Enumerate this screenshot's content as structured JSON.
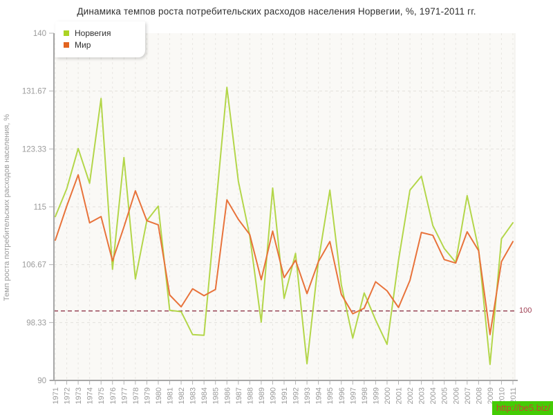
{
  "title": "Динамика темпов роста потребительских расходов населения Норвегии, %, 1971-2011 гг.",
  "watermark": "http://be5.biz/",
  "guide": {
    "value": 100,
    "label": "100",
    "color": "#8e3449"
  },
  "legend": [
    {
      "label": "Норвегия",
      "color": "#abd324"
    },
    {
      "label": "Мир",
      "color": "#e2641f"
    }
  ],
  "y_axis": {
    "title": "Темп роста потребительских расходов населения, %",
    "tick_labels": [
      "90",
      "98.33",
      "106.67",
      "115",
      "123.33",
      "131.67",
      "140"
    ],
    "tick_values": [
      90,
      98.33,
      106.67,
      115,
      123.33,
      131.67,
      140
    ]
  },
  "chart_data": {
    "type": "line",
    "title": "Динамика темпов роста потребительских расходов населения Норвегии, %, 1971-2011 гг.",
    "xlabel": "",
    "ylabel": "Темп роста потребительских расходов населения, %",
    "ylim": [
      90,
      140
    ],
    "grid": true,
    "legend_position": "top-left",
    "guide_line": {
      "value": 100,
      "style": "dashed",
      "color": "#8e3449"
    },
    "x": [
      1971,
      1972,
      1973,
      1974,
      1975,
      1976,
      1977,
      1978,
      1979,
      1980,
      1981,
      1982,
      1983,
      1984,
      1985,
      1986,
      1987,
      1988,
      1989,
      1990,
      1991,
      1992,
      1993,
      1994,
      1995,
      1996,
      1997,
      1998,
      1999,
      2000,
      2001,
      2002,
      2003,
      2004,
      2005,
      2006,
      2007,
      2008,
      2009,
      2010,
      2011
    ],
    "series": [
      {
        "name": "Норвегия",
        "color": "#b3d649",
        "values": [
          113.6,
          117.6,
          123.4,
          118.4,
          130.6,
          106.0,
          122.1,
          104.6,
          113.0,
          115.1,
          100.1,
          99.9,
          96.6,
          96.5,
          114.4,
          132.2,
          118.7,
          110.8,
          98.4,
          117.7,
          101.8,
          108.3,
          92.4,
          107.2,
          117.4,
          103.8,
          96.1,
          102.6,
          98.7,
          95.2,
          107.3,
          117.4,
          119.4,
          112.3,
          109.0,
          107.0,
          116.6,
          108.9,
          92.3,
          110.4,
          112.7
        ]
      },
      {
        "name": "Мир",
        "color": "#e8723a",
        "values": [
          110.2,
          115.1,
          119.6,
          112.7,
          113.6,
          107.2,
          112.1,
          117.3,
          113.0,
          112.4,
          102.3,
          100.6,
          103.2,
          102.2,
          103.1,
          116.0,
          113.2,
          111.0,
          104.5,
          111.5,
          104.8,
          107.3,
          102.5,
          107.1,
          110.0,
          102.4,
          99.6,
          100.4,
          104.2,
          102.9,
          100.5,
          104.4,
          111.3,
          110.9,
          107.4,
          106.9,
          111.4,
          108.7,
          96.6,
          107.1,
          110.0
        ]
      }
    ]
  }
}
